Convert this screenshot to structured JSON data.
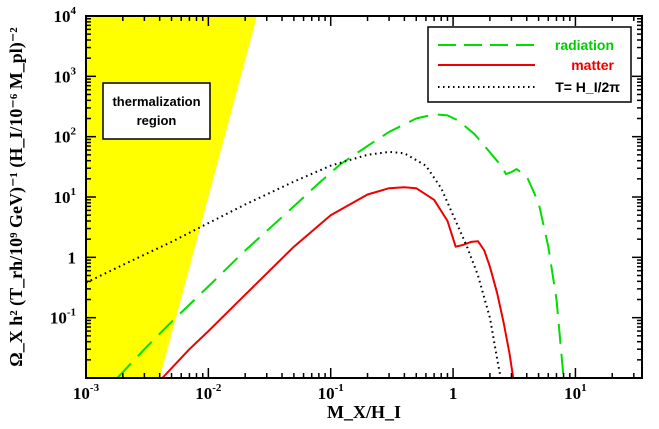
{
  "chart_data": {
    "type": "line",
    "xlabel": "M_X/H_I",
    "ylabel": "Ω_X h² (T_rh/10⁹ GeV)⁻¹ (H_I/10⁻⁶ M_pl)⁻²",
    "xscale": "log",
    "yscale": "log",
    "xlim": [
      0.001,
      35
    ],
    "ylim": [
      0.01,
      10000
    ],
    "x_ticks": [
      {
        "value": 0.001,
        "base": "10",
        "exp": "-3"
      },
      {
        "value": 0.01,
        "base": "10",
        "exp": "-2"
      },
      {
        "value": 0.1,
        "base": "10",
        "exp": "-1"
      },
      {
        "value": 1,
        "base": "1",
        "exp": ""
      },
      {
        "value": 10,
        "base": "10",
        "exp": "1"
      }
    ],
    "y_ticks": [
      {
        "value": 0.1,
        "base": "10",
        "exp": "-1"
      },
      {
        "value": 1,
        "base": "1",
        "exp": ""
      },
      {
        "value": 10,
        "base": "10",
        "exp": "1"
      },
      {
        "value": 100,
        "base": "10",
        "exp": "2"
      },
      {
        "value": 1000,
        "base": "10",
        "exp": "3"
      },
      {
        "value": 10000,
        "base": "10",
        "exp": "4"
      }
    ],
    "grid": false,
    "legend_position": "top-right",
    "region": {
      "label_line1": "thermalization",
      "label_line2": "region",
      "color": "#ffff00",
      "boundary": [
        [
          0.001,
          0.01
        ],
        [
          0.001,
          10000
        ],
        [
          0.025,
          10000
        ],
        [
          0.004,
          0.01
        ]
      ]
    },
    "series": [
      {
        "name": "radiation",
        "color": "#00dd00",
        "dash": "long-dash",
        "points": [
          [
            0.0018,
            0.01
          ],
          [
            0.003,
            0.03
          ],
          [
            0.005,
            0.085
          ],
          [
            0.01,
            0.33
          ],
          [
            0.02,
            1.3
          ],
          [
            0.05,
            7
          ],
          [
            0.08,
            17
          ],
          [
            0.12,
            35
          ],
          [
            0.2,
            70
          ],
          [
            0.3,
            120
          ],
          [
            0.5,
            200
          ],
          [
            0.7,
            235
          ],
          [
            0.9,
            225
          ],
          [
            1.1,
            185
          ],
          [
            1.5,
            110
          ],
          [
            2.0,
            55
          ],
          [
            2.5,
            32
          ],
          [
            2.7,
            24
          ],
          [
            3.0,
            26
          ],
          [
            3.3,
            29
          ],
          [
            4.0,
            22
          ],
          [
            5.0,
            8
          ],
          [
            6.0,
            1.5
          ],
          [
            7.0,
            0.2
          ],
          [
            8.0,
            0.01
          ]
        ]
      },
      {
        "name": "matter",
        "color": "#ee0000",
        "dash": "solid",
        "points": [
          [
            0.0042,
            0.01
          ],
          [
            0.007,
            0.03
          ],
          [
            0.01,
            0.06
          ],
          [
            0.02,
            0.24
          ],
          [
            0.05,
            1.5
          ],
          [
            0.1,
            5
          ],
          [
            0.2,
            11
          ],
          [
            0.3,
            14
          ],
          [
            0.4,
            14.5
          ],
          [
            0.5,
            14
          ],
          [
            0.7,
            9
          ],
          [
            0.9,
            4
          ],
          [
            1.05,
            1.5
          ],
          [
            1.2,
            1.6
          ],
          [
            1.4,
            1.8
          ],
          [
            1.6,
            1.85
          ],
          [
            1.8,
            1.3
          ],
          [
            2.0,
            0.7
          ],
          [
            2.3,
            0.25
          ],
          [
            2.6,
            0.08
          ],
          [
            2.9,
            0.025
          ],
          [
            3.1,
            0.01
          ]
        ]
      },
      {
        "name": "T= H_I/2π",
        "color": "#000000",
        "dash": "dotted",
        "points": [
          [
            0.001,
            0.38
          ],
          [
            0.002,
            0.75
          ],
          [
            0.005,
            1.8
          ],
          [
            0.01,
            3.7
          ],
          [
            0.02,
            7.5
          ],
          [
            0.05,
            18
          ],
          [
            0.1,
            33
          ],
          [
            0.2,
            50
          ],
          [
            0.3,
            56
          ],
          [
            0.4,
            53
          ],
          [
            0.6,
            33
          ],
          [
            0.8,
            14
          ],
          [
            1.0,
            5
          ],
          [
            1.3,
            1.5
          ],
          [
            1.6,
            0.5
          ],
          [
            2.0,
            0.1
          ],
          [
            2.3,
            0.02
          ],
          [
            2.45,
            0.01
          ]
        ]
      }
    ]
  }
}
